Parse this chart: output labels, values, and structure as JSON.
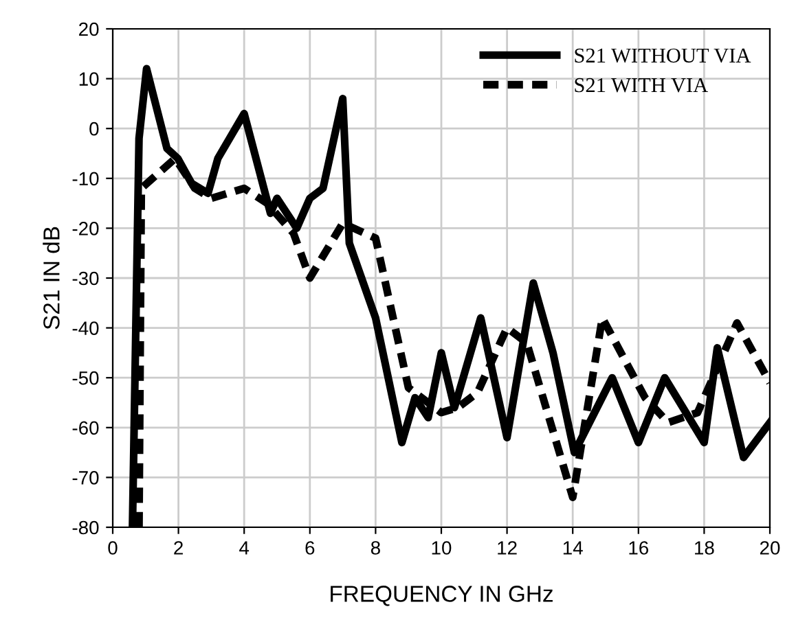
{
  "chart_data": {
    "type": "line",
    "xlabel": "FREQUENCY IN GHz",
    "ylabel": "S21 IN dB",
    "xlim": [
      0,
      20
    ],
    "ylim": [
      -80,
      20
    ],
    "xticks": [
      0,
      2,
      4,
      6,
      8,
      10,
      12,
      14,
      16,
      18,
      20
    ],
    "yticks": [
      -80,
      -70,
      -60,
      -50,
      -40,
      -30,
      -20,
      -10,
      0,
      10,
      20
    ],
    "grid": true,
    "legend": "top right",
    "series": [
      {
        "name": "S21 WITHOUT VIA",
        "color": "#000000",
        "line_style": "solid",
        "x": [
          0.6,
          0.8,
          1.03,
          1.65,
          1.98,
          2.4,
          2.9,
          3.2,
          4.0,
          4.8,
          5.0,
          5.6,
          6.0,
          6.4,
          7.0,
          7.2,
          8.0,
          8.8,
          9.2,
          9.6,
          10.0,
          10.4,
          11.2,
          12.0,
          12.8,
          13.4,
          14.05,
          15.2,
          16.0,
          16.8,
          18.0,
          18.4,
          19.2,
          20.0
        ],
        "values": [
          -80,
          -2,
          12,
          -4,
          -6,
          -11,
          -13,
          -6,
          3,
          -17,
          -14,
          -20,
          -14,
          -12,
          6,
          -23,
          -38,
          -63,
          -54,
          -58,
          -45,
          -56,
          -38,
          -62,
          -31,
          -45,
          -65,
          -50,
          -63,
          -50,
          -63,
          -44,
          -66,
          -59
        ]
      },
      {
        "name": "S21 WITH VIA",
        "color": "#000000",
        "line_style": "dashed",
        "x": [
          0.8,
          0.87,
          1.9,
          2.5,
          3.0,
          4.0,
          4.7,
          5.5,
          6.0,
          7.0,
          8.0,
          9.0,
          10.0,
          10.5,
          11.1,
          12.0,
          12.6,
          14.0,
          14.9,
          16.2,
          16.9,
          17.8,
          19.0,
          20.0
        ],
        "values": [
          -80,
          -12,
          -6,
          -12,
          -14,
          -12,
          -15,
          -21,
          -30,
          -19,
          -22,
          -52,
          -57,
          -56,
          -53,
          -40,
          -43,
          -74,
          -38,
          -54,
          -59,
          -57,
          -39,
          -51
        ]
      }
    ]
  }
}
